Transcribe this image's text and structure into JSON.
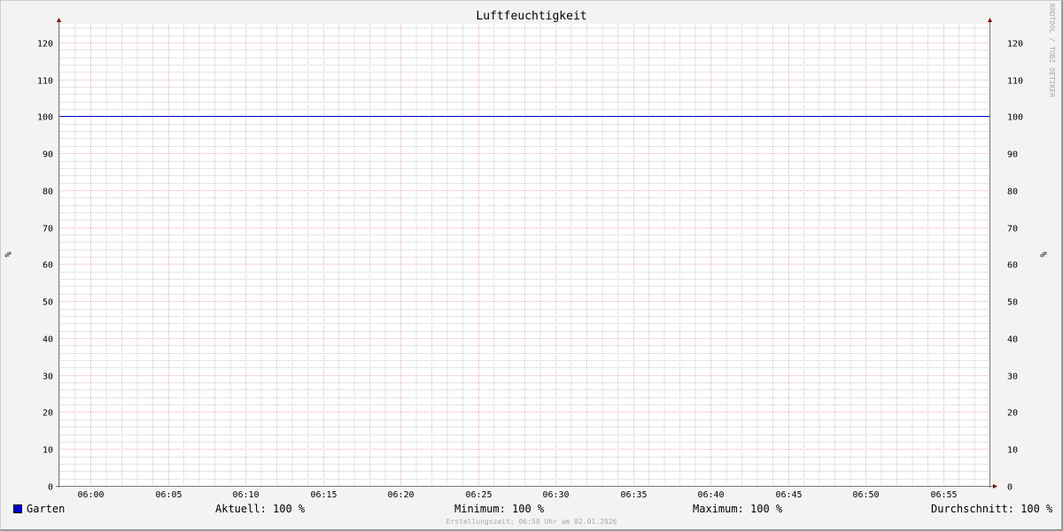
{
  "chart_data": {
    "type": "line",
    "title": "Luftfeuchtigkeit",
    "ylabel": "%",
    "ylabel_right": "%",
    "xlim": [
      "05:58",
      "06:58"
    ],
    "ylim": [
      0,
      125
    ],
    "x_ticks": [
      "06:00",
      "06:05",
      "06:10",
      "06:15",
      "06:20",
      "06:25",
      "06:30",
      "06:35",
      "06:40",
      "06:45",
      "06:50",
      "06:55"
    ],
    "y_ticks": [
      0,
      10,
      20,
      30,
      40,
      50,
      60,
      70,
      80,
      90,
      100,
      110,
      120
    ],
    "grid": true,
    "series": [
      {
        "name": "Garten",
        "color": "#0000cc",
        "x": [
          "05:58",
          "06:58"
        ],
        "values": [
          100,
          100
        ]
      }
    ],
    "legend": {
      "placement": "bottom",
      "aktuell": "Aktuell: 100 %",
      "minimum": "Minimum: 100 %",
      "maximum": "Maximum: 100 %",
      "durchschnitt": "Durchschnitt: 100 %"
    },
    "footer": "Erstellungszeit: 06:58 Uhr am 02.01.2026",
    "watermark": "RRDTOOL / TOBI OETIKER"
  }
}
